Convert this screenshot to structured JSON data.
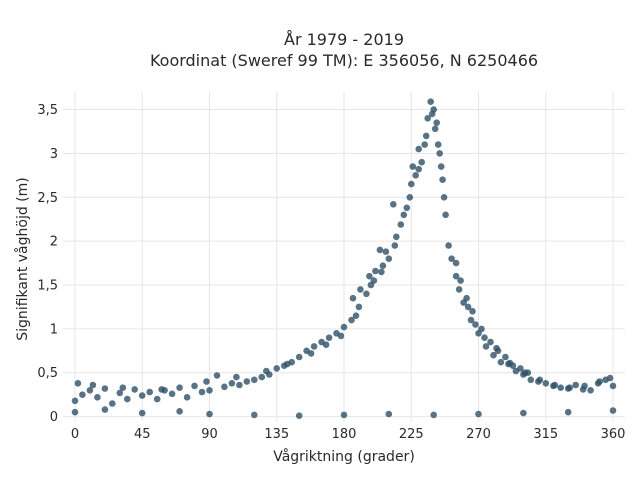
{
  "chart_data": {
    "type": "scatter",
    "title_lines": [
      "År 1979 - 2019",
      "Koordinat (Sweref 99 TM): E 356056, N 6250466"
    ],
    "xlabel": "Vågriktning (grader)",
    "ylabel": "Signifikant våghöjd (m)",
    "xlim": [
      -8,
      368
    ],
    "ylim": [
      -0.05,
      3.7
    ],
    "xticks": [
      0,
      45,
      90,
      135,
      180,
      225,
      270,
      315,
      360
    ],
    "xtick_labels": [
      "0",
      "45",
      "90",
      "135",
      "180",
      "225",
      "270",
      "315",
      "360"
    ],
    "yticks": [
      0,
      0.5,
      1,
      1.5,
      2,
      2.5,
      3,
      3.5
    ],
    "ytick_labels": [
      "0",
      "0,5",
      "1",
      "1,5",
      "2",
      "2,5",
      "3",
      "3,5"
    ],
    "grid": true,
    "legend": "none",
    "marker_color": "#2f5068",
    "series": [
      {
        "points": [
          [
            0,
            0.18
          ],
          [
            5,
            0.25
          ],
          [
            10,
            0.3
          ],
          [
            15,
            0.22
          ],
          [
            20,
            0.32
          ],
          [
            25,
            0.15
          ],
          [
            30,
            0.27
          ],
          [
            35,
            0.2
          ],
          [
            40,
            0.31
          ],
          [
            45,
            0.24
          ],
          [
            50,
            0.28
          ],
          [
            55,
            0.2
          ],
          [
            60,
            0.3
          ],
          [
            65,
            0.26
          ],
          [
            70,
            0.33
          ],
          [
            75,
            0.22
          ],
          [
            80,
            0.35
          ],
          [
            85,
            0.28
          ],
          [
            90,
            0.3
          ],
          [
            95,
            0.47
          ],
          [
            100,
            0.34
          ],
          [
            105,
            0.38
          ],
          [
            110,
            0.36
          ],
          [
            115,
            0.4
          ],
          [
            120,
            0.42
          ],
          [
            125,
            0.45
          ],
          [
            130,
            0.48
          ],
          [
            135,
            0.55
          ],
          [
            140,
            0.58
          ],
          [
            145,
            0.62
          ],
          [
            150,
            0.68
          ],
          [
            155,
            0.75
          ],
          [
            160,
            0.8
          ],
          [
            165,
            0.85
          ],
          [
            170,
            0.9
          ],
          [
            175,
            0.95
          ],
          [
            180,
            1.02
          ],
          [
            185,
            1.1
          ],
          [
            190,
            1.25
          ],
          [
            195,
            1.4
          ],
          [
            200,
            1.55
          ],
          [
            205,
            1.65
          ],
          [
            210,
            1.8
          ],
          [
            215,
            2.05
          ],
          [
            220,
            2.3
          ],
          [
            225,
            2.65
          ],
          [
            230,
            3.05
          ],
          [
            235,
            3.2
          ],
          [
            238,
            3.59
          ],
          [
            240,
            3.5
          ],
          [
            242,
            3.35
          ],
          [
            245,
            2.85
          ],
          [
            248,
            2.3
          ],
          [
            250,
            1.95
          ],
          [
            255,
            1.6
          ],
          [
            260,
            1.3
          ],
          [
            265,
            1.1
          ],
          [
            270,
            0.95
          ],
          [
            275,
            0.8
          ],
          [
            280,
            0.7
          ],
          [
            285,
            0.62
          ],
          [
            290,
            0.6
          ],
          [
            295,
            0.52
          ],
          [
            300,
            0.48
          ],
          [
            305,
            0.42
          ],
          [
            310,
            0.4
          ],
          [
            315,
            0.38
          ],
          [
            320,
            0.35
          ],
          [
            325,
            0.33
          ],
          [
            330,
            0.32
          ],
          [
            335,
            0.36
          ],
          [
            340,
            0.31
          ],
          [
            345,
            0.3
          ],
          [
            350,
            0.38
          ],
          [
            355,
            0.42
          ],
          [
            360,
            0.35
          ],
          [
            213,
            2.42
          ],
          [
            222,
            2.38
          ],
          [
            228,
            2.75
          ],
          [
            232,
            2.9
          ],
          [
            236,
            3.4
          ],
          [
            241,
            3.28
          ],
          [
            244,
            3.0
          ],
          [
            246,
            2.7
          ],
          [
            204,
            1.9
          ],
          [
            208,
            1.88
          ],
          [
            197,
            1.6
          ],
          [
            201,
            1.66
          ],
          [
            218,
            2.19
          ],
          [
            226,
            2.85
          ],
          [
            230,
            2.82
          ],
          [
            186,
            1.35
          ],
          [
            191,
            1.45
          ],
          [
            255,
            1.75
          ],
          [
            258,
            1.55
          ],
          [
            262,
            1.35
          ],
          [
            266,
            1.2
          ],
          [
            272,
            1.0
          ],
          [
            278,
            0.85
          ],
          [
            283,
            0.75
          ],
          [
            288,
            0.68
          ],
          [
            293,
            0.58
          ],
          [
            298,
            0.55
          ],
          [
            303,
            0.5
          ],
          [
            0,
            0.05
          ],
          [
            20,
            0.08
          ],
          [
            45,
            0.04
          ],
          [
            70,
            0.06
          ],
          [
            90,
            0.03
          ],
          [
            120,
            0.02
          ],
          [
            150,
            0.01
          ],
          [
            180,
            0.02
          ],
          [
            210,
            0.03
          ],
          [
            240,
            0.02
          ],
          [
            270,
            0.03
          ],
          [
            300,
            0.04
          ],
          [
            330,
            0.05
          ],
          [
            360,
            0.07
          ],
          [
            2,
            0.38
          ],
          [
            12,
            0.36
          ],
          [
            32,
            0.33
          ],
          [
            58,
            0.31
          ],
          [
            88,
            0.4
          ],
          [
            108,
            0.45
          ],
          [
            128,
            0.52
          ],
          [
            142,
            0.6
          ],
          [
            158,
            0.72
          ],
          [
            168,
            0.82
          ],
          [
            178,
            0.92
          ],
          [
            188,
            1.15
          ],
          [
            198,
            1.5
          ],
          [
            206,
            1.72
          ],
          [
            214,
            1.95
          ],
          [
            224,
            2.5
          ],
          [
            234,
            3.1
          ],
          [
            239,
            3.45
          ],
          [
            243,
            3.1
          ],
          [
            247,
            2.5
          ],
          [
            252,
            1.8
          ],
          [
            257,
            1.45
          ],
          [
            263,
            1.25
          ],
          [
            268,
            1.05
          ],
          [
            274,
            0.9
          ],
          [
            282,
            0.78
          ],
          [
            291,
            0.61
          ],
          [
            301,
            0.5
          ],
          [
            311,
            0.42
          ],
          [
            321,
            0.36
          ],
          [
            331,
            0.33
          ],
          [
            341,
            0.35
          ],
          [
            351,
            0.4
          ],
          [
            358,
            0.44
          ]
        ]
      }
    ]
  }
}
